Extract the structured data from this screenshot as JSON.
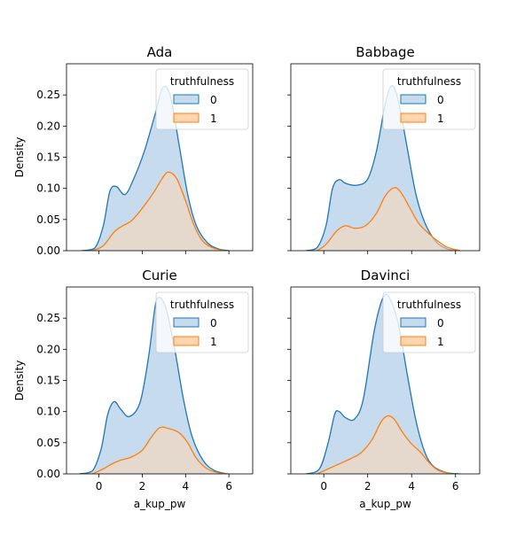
{
  "chart_data": {
    "type": "area",
    "xlim": [
      -1.5,
      7.1
    ],
    "ylim": [
      0,
      0.3
    ],
    "x_ticks": [
      0,
      2,
      4,
      6
    ],
    "y_ticks": [
      0.0,
      0.05,
      0.1,
      0.15,
      0.2,
      0.25
    ],
    "x_tick_labels": [
      "0",
      "2",
      "4",
      "6"
    ],
    "y_tick_labels": [
      "0.00",
      "0.05",
      "0.10",
      "0.15",
      "0.20",
      "0.25"
    ],
    "xlabel": "a_kup_pw",
    "ylabel": "Density",
    "legend": {
      "title": "truthfulness",
      "position": "upper right",
      "entries": [
        "0",
        "1"
      ]
    },
    "colors": {
      "series0_line": "#1f77b4",
      "series0_fill": "#c6dbed",
      "series1_line": "#ff7f0e",
      "series1_fill": "#ffd6b0",
      "overlap_fill": "#c9c1b4"
    },
    "panels": [
      {
        "title": "Ada",
        "series": [
          {
            "name": "0",
            "points": [
              [
                -0.8,
                0.0
              ],
              [
                -0.2,
                0.004
              ],
              [
                0.2,
                0.04
              ],
              [
                0.5,
                0.095
              ],
              [
                0.8,
                0.103
              ],
              [
                1.2,
                0.09
              ],
              [
                1.6,
                0.115
              ],
              [
                2.1,
                0.16
              ],
              [
                2.6,
                0.22
              ],
              [
                2.95,
                0.262
              ],
              [
                3.3,
                0.248
              ],
              [
                3.7,
                0.17
              ],
              [
                4.1,
                0.09
              ],
              [
                4.5,
                0.04
              ],
              [
                5.0,
                0.013
              ],
              [
                5.5,
                0.003
              ],
              [
                6.0,
                0.0
              ]
            ]
          },
          {
            "name": "1",
            "points": [
              [
                -0.3,
                0.0
              ],
              [
                0.2,
                0.008
              ],
              [
                0.7,
                0.03
              ],
              [
                1.1,
                0.04
              ],
              [
                1.5,
                0.048
              ],
              [
                2.0,
                0.068
              ],
              [
                2.5,
                0.092
              ],
              [
                3.0,
                0.12
              ],
              [
                3.25,
                0.126
              ],
              [
                3.6,
                0.115
              ],
              [
                4.0,
                0.08
              ],
              [
                4.4,
                0.04
              ],
              [
                4.8,
                0.015
              ],
              [
                5.3,
                0.004
              ],
              [
                5.8,
                0.0
              ]
            ]
          }
        ]
      },
      {
        "title": "Babbage",
        "series": [
          {
            "name": "0",
            "points": [
              [
                -0.8,
                0.0
              ],
              [
                -0.3,
                0.005
              ],
              [
                0.1,
                0.04
              ],
              [
                0.4,
                0.1
              ],
              [
                0.7,
                0.114
              ],
              [
                1.0,
                0.108
              ],
              [
                1.5,
                0.105
              ],
              [
                2.0,
                0.115
              ],
              [
                2.4,
                0.16
              ],
              [
                2.8,
                0.235
              ],
              [
                3.1,
                0.265
              ],
              [
                3.4,
                0.24
              ],
              [
                3.8,
                0.165
              ],
              [
                4.2,
                0.09
              ],
              [
                4.6,
                0.045
              ],
              [
                5.1,
                0.015
              ],
              [
                5.6,
                0.003
              ],
              [
                6.1,
                0.0
              ]
            ]
          },
          {
            "name": "1",
            "points": [
              [
                -0.3,
                0.0
              ],
              [
                0.1,
                0.01
              ],
              [
                0.6,
                0.032
              ],
              [
                1.0,
                0.04
              ],
              [
                1.4,
                0.036
              ],
              [
                1.9,
                0.04
              ],
              [
                2.4,
                0.06
              ],
              [
                2.8,
                0.088
              ],
              [
                3.2,
                0.101
              ],
              [
                3.5,
                0.094
              ],
              [
                3.9,
                0.07
              ],
              [
                4.3,
                0.045
              ],
              [
                4.7,
                0.03
              ],
              [
                5.1,
                0.018
              ],
              [
                5.6,
                0.006
              ],
              [
                6.2,
                0.0
              ]
            ]
          }
        ]
      },
      {
        "title": "Curie",
        "series": [
          {
            "name": "0",
            "points": [
              [
                -0.9,
                0.0
              ],
              [
                -0.3,
                0.005
              ],
              [
                0.1,
                0.04
              ],
              [
                0.4,
                0.095
              ],
              [
                0.7,
                0.116
              ],
              [
                1.0,
                0.104
              ],
              [
                1.4,
                0.092
              ],
              [
                1.9,
                0.115
              ],
              [
                2.3,
                0.19
              ],
              [
                2.6,
                0.27
              ],
              [
                2.8,
                0.283
              ],
              [
                3.1,
                0.265
              ],
              [
                3.5,
                0.2
              ],
              [
                3.9,
                0.12
              ],
              [
                4.3,
                0.06
              ],
              [
                4.8,
                0.022
              ],
              [
                5.3,
                0.006
              ],
              [
                5.9,
                0.0
              ]
            ]
          },
          {
            "name": "1",
            "points": [
              [
                -0.3,
                0.0
              ],
              [
                0.2,
                0.008
              ],
              [
                0.6,
                0.016
              ],
              [
                1.0,
                0.022
              ],
              [
                1.5,
                0.027
              ],
              [
                2.0,
                0.038
              ],
              [
                2.4,
                0.058
              ],
              [
                2.8,
                0.074
              ],
              [
                3.2,
                0.073
              ],
              [
                3.7,
                0.066
              ],
              [
                4.1,
                0.05
              ],
              [
                4.5,
                0.025
              ],
              [
                5.0,
                0.008
              ],
              [
                5.6,
                0.001
              ],
              [
                6.0,
                0.0
              ]
            ]
          }
        ]
      },
      {
        "title": "Davinci",
        "series": [
          {
            "name": "0",
            "points": [
              [
                -0.8,
                0.0
              ],
              [
                -0.2,
                0.008
              ],
              [
                0.2,
                0.05
              ],
              [
                0.5,
                0.096
              ],
              [
                0.7,
                0.1
              ],
              [
                1.0,
                0.09
              ],
              [
                1.4,
                0.088
              ],
              [
                1.8,
                0.12
              ],
              [
                2.3,
                0.23
              ],
              [
                2.7,
                0.283
              ],
              [
                3.0,
                0.282
              ],
              [
                3.4,
                0.24
              ],
              [
                3.8,
                0.16
              ],
              [
                4.2,
                0.085
              ],
              [
                4.6,
                0.035
              ],
              [
                5.0,
                0.012
              ],
              [
                5.6,
                0.002
              ],
              [
                6.2,
                0.0
              ]
            ]
          },
          {
            "name": "1",
            "points": [
              [
                -0.3,
                0.0
              ],
              [
                0.2,
                0.008
              ],
              [
                0.7,
                0.016
              ],
              [
                1.2,
                0.024
              ],
              [
                1.7,
                0.034
              ],
              [
                2.2,
                0.055
              ],
              [
                2.6,
                0.083
              ],
              [
                2.9,
                0.093
              ],
              [
                3.2,
                0.088
              ],
              [
                3.6,
                0.066
              ],
              [
                4.0,
                0.048
              ],
              [
                4.4,
                0.035
              ],
              [
                4.8,
                0.018
              ],
              [
                5.2,
                0.006
              ],
              [
                5.8,
                0.0
              ]
            ]
          }
        ]
      }
    ]
  }
}
